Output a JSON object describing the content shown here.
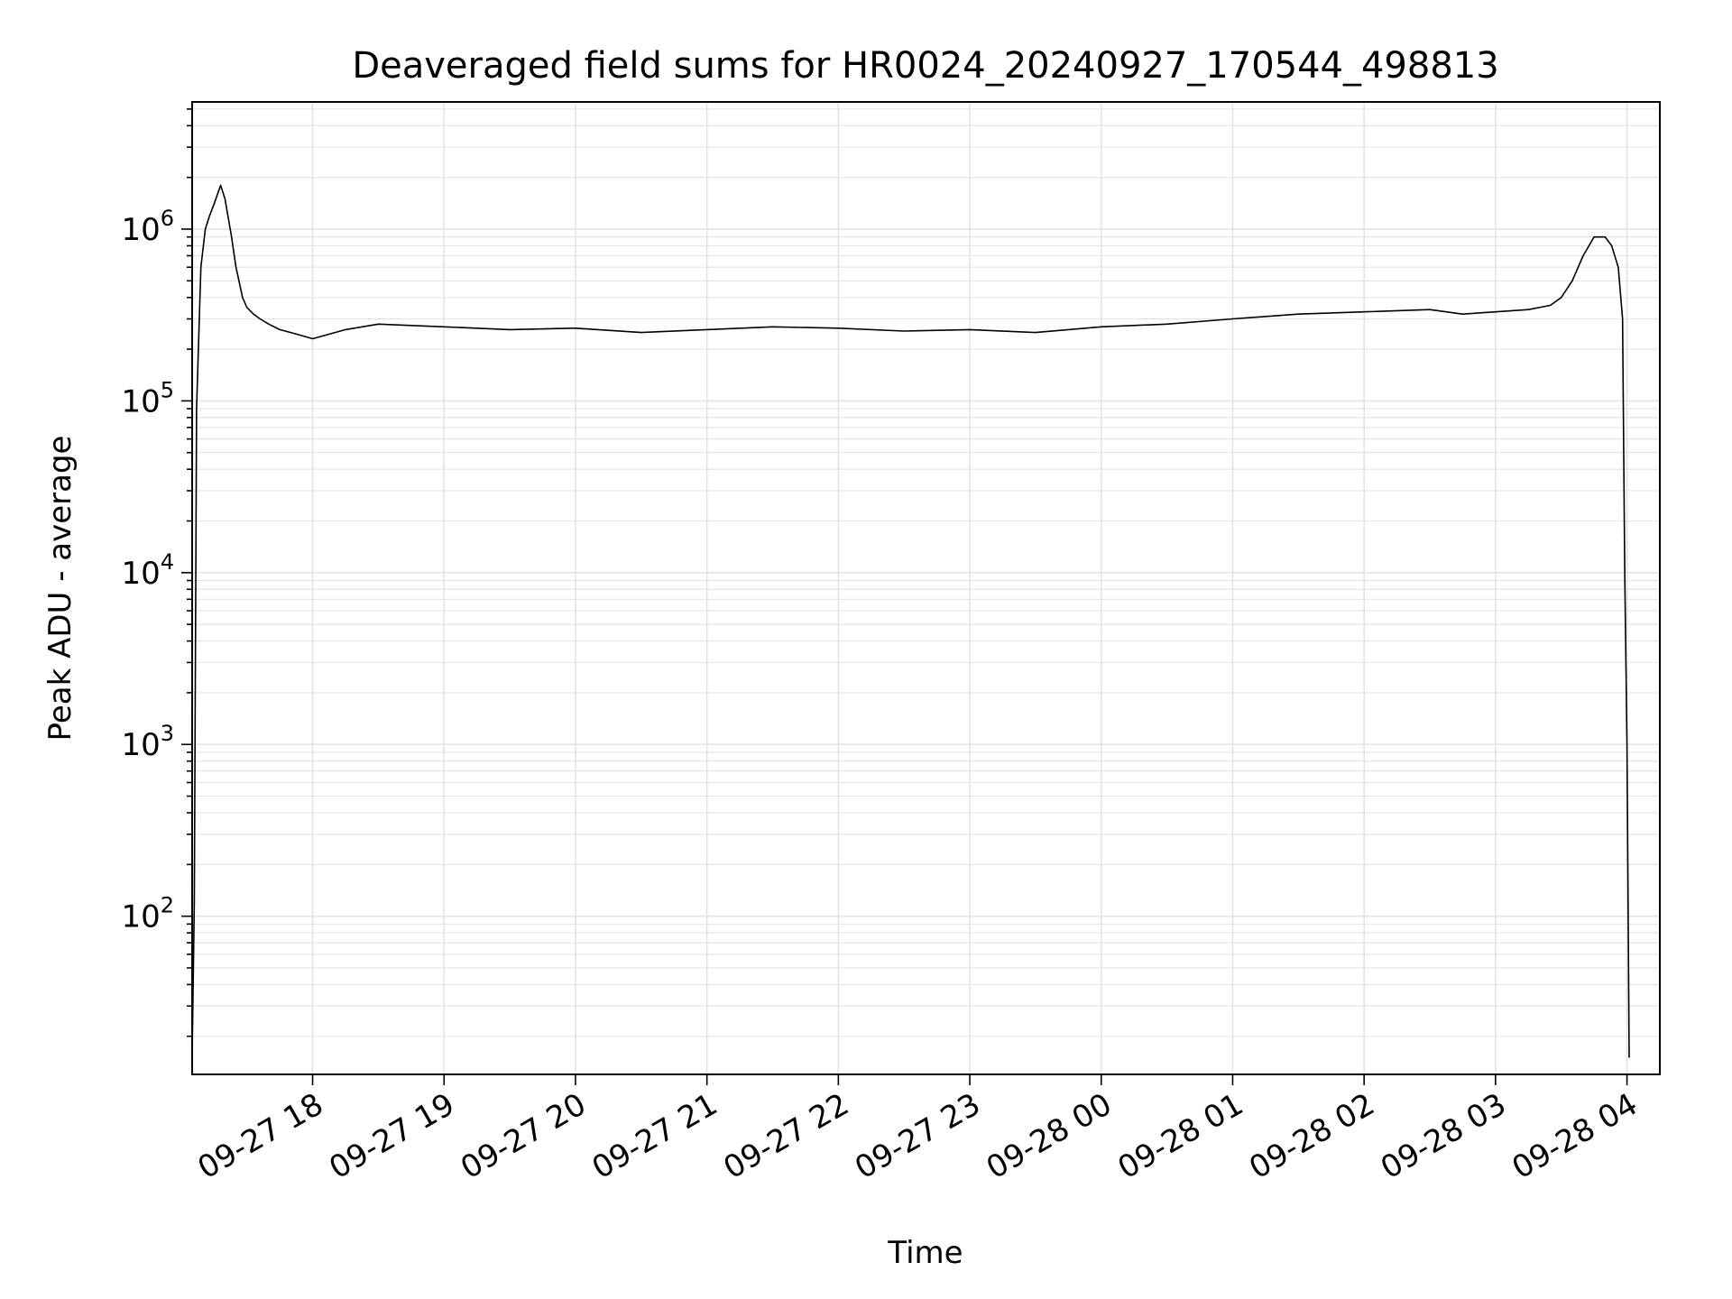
{
  "chart_data": {
    "type": "line",
    "title": "Deaveraged field sums for HR0024_20240927_170544_498813",
    "xlabel": "Time",
    "ylabel": "Peak ADU - average",
    "x_scale": "time",
    "y_scale": "log",
    "xlim": [
      "2024-09-27T17:05",
      "2024-09-28T04:15"
    ],
    "ylim": [
      12,
      5500000
    ],
    "grid": true,
    "line_color": "#000000",
    "x_ticks": [
      "2024-09-27T18:00",
      "2024-09-27T19:00",
      "2024-09-27T20:00",
      "2024-09-27T21:00",
      "2024-09-27T22:00",
      "2024-09-27T23:00",
      "2024-09-28T00:00",
      "2024-09-28T01:00",
      "2024-09-28T02:00",
      "2024-09-28T03:00",
      "2024-09-28T04:00"
    ],
    "x_tick_labels": [
      "09-27 18",
      "09-27 19",
      "09-27 20",
      "09-27 21",
      "09-27 22",
      "09-27 23",
      "09-28 00",
      "09-28 01",
      "09-28 02",
      "09-28 03",
      "09-28 04"
    ],
    "y_ticks": [
      {
        "value": 100,
        "base": "10",
        "exp": "2"
      },
      {
        "value": 1000,
        "base": "10",
        "exp": "3"
      },
      {
        "value": 10000,
        "base": "10",
        "exp": "4"
      },
      {
        "value": 100000,
        "base": "10",
        "exp": "5"
      },
      {
        "value": 1000000,
        "base": "10",
        "exp": "6"
      }
    ],
    "series": [
      {
        "x": [
          "2024-09-27T17:05",
          "2024-09-27T17:06",
          "2024-09-27T17:07",
          "2024-09-27T17:09",
          "2024-09-27T17:11",
          "2024-09-27T17:13",
          "2024-09-27T17:15",
          "2024-09-27T17:18",
          "2024-09-27T17:20",
          "2024-09-27T17:23",
          "2024-09-27T17:25",
          "2024-09-27T17:28",
          "2024-09-27T17:30",
          "2024-09-27T17:33",
          "2024-09-27T17:36",
          "2024-09-27T17:40",
          "2024-09-27T17:45",
          "2024-09-27T17:50",
          "2024-09-27T17:55",
          "2024-09-27T18:00",
          "2024-09-27T18:15",
          "2024-09-27T18:30",
          "2024-09-27T19:00",
          "2024-09-27T19:30",
          "2024-09-27T20:00",
          "2024-09-27T20:30",
          "2024-09-27T21:00",
          "2024-09-27T21:30",
          "2024-09-27T22:00",
          "2024-09-27T22:30",
          "2024-09-27T23:00",
          "2024-09-27T23:30",
          "2024-09-28T00:00",
          "2024-09-28T00:30",
          "2024-09-28T01:00",
          "2024-09-28T01:30",
          "2024-09-28T02:00",
          "2024-09-28T02:30",
          "2024-09-28T02:45",
          "2024-09-28T03:00",
          "2024-09-28T03:15",
          "2024-09-28T03:25",
          "2024-09-28T03:30",
          "2024-09-28T03:35",
          "2024-09-28T03:40",
          "2024-09-28T03:45",
          "2024-09-28T03:50",
          "2024-09-28T03:53",
          "2024-09-28T03:56",
          "2024-09-28T03:58",
          "2024-09-28T03:59",
          "2024-09-28T04:00",
          "2024-09-28T04:01"
        ],
        "y": [
          15,
          120,
          90000,
          600000,
          1000000,
          1200000,
          1400000,
          1800000,
          1500000,
          900000,
          600000,
          400000,
          350000,
          320000,
          300000,
          280000,
          260000,
          250000,
          240000,
          230000,
          260000,
          280000,
          270000,
          260000,
          265000,
          250000,
          260000,
          270000,
          265000,
          255000,
          260000,
          250000,
          270000,
          280000,
          300000,
          320000,
          330000,
          340000,
          320000,
          330000,
          340000,
          360000,
          400000,
          500000,
          700000,
          900000,
          900000,
          800000,
          600000,
          300000,
          10000,
          1000,
          15
        ]
      }
    ]
  }
}
